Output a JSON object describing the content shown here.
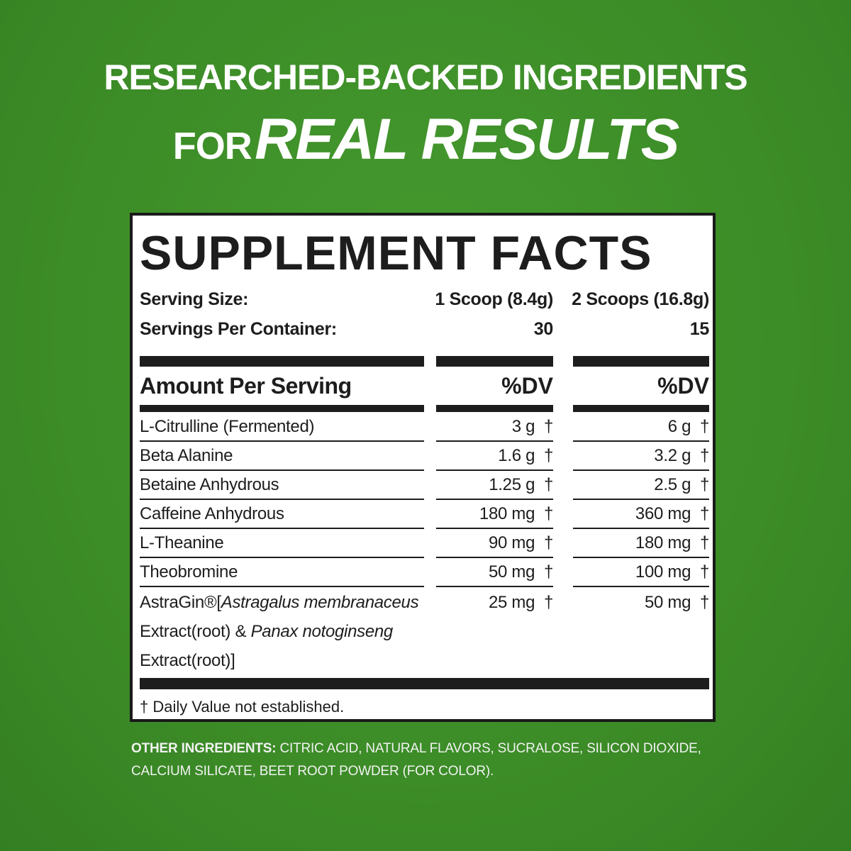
{
  "headline": {
    "line1": "RESEARCHED-BACKED INGREDIENTS",
    "line2_prefix": "FOR",
    "line2_emphasis": "REAL RESULTS"
  },
  "colors": {
    "background": "#3f8f2a",
    "panel": "#ffffff",
    "ink": "#1d1d1d"
  },
  "facts": {
    "title": "SUPPLEMENT FACTS",
    "serving_size_label": "Serving Size:",
    "serving_size_1": "1 Scoop (8.4g)",
    "serving_size_2": "2 Scoops (16.8g)",
    "servings_label": "Servings Per Container:",
    "servings_1": "30",
    "servings_2": "15",
    "amount_header": "Amount Per Serving",
    "dv_header_1": "%DV",
    "dv_header_2": "%DV",
    "rows": [
      {
        "name": "L-Citrulline (Fermented)",
        "v1": "3 g",
        "v2": "6 g",
        "dv": "†"
      },
      {
        "name": "Beta Alanine",
        "v1": "1.6 g",
        "v2": "3.2 g",
        "dv": "†"
      },
      {
        "name": "Betaine Anhydrous",
        "v1": "1.25 g",
        "v2": "2.5 g",
        "dv": "†"
      },
      {
        "name": "Caffeine Anhydrous",
        "v1": "180 mg",
        "v2": "360 mg",
        "dv": "†"
      },
      {
        "name": "L-Theanine",
        "v1": "90 mg",
        "v2": "180 mg",
        "dv": "†"
      },
      {
        "name": "Theobromine",
        "v1": "50 mg",
        "v2": "100 mg",
        "dv": "†"
      }
    ],
    "astragin": {
      "brand": "AstraGin®",
      "bracket_open": "[",
      "species1": "Astragalus membranaceus",
      "line2_a": "Extract(root) & ",
      "species2": "Panax notoginseng",
      "line3": "Extract(root)]",
      "v1": "25 mg",
      "v2": "50 mg",
      "dv": "†"
    },
    "footnote": "† Daily Value not established."
  },
  "other_ingredients": {
    "label": "OTHER INGREDIENTS:",
    "line1": "CITRIC ACID, NATURAL FLAVORS, SUCRALOSE, SILICON DIOXIDE,",
    "line2": "CALCIUM SILICATE, BEET ROOT POWDER (FOR COLOR)."
  }
}
